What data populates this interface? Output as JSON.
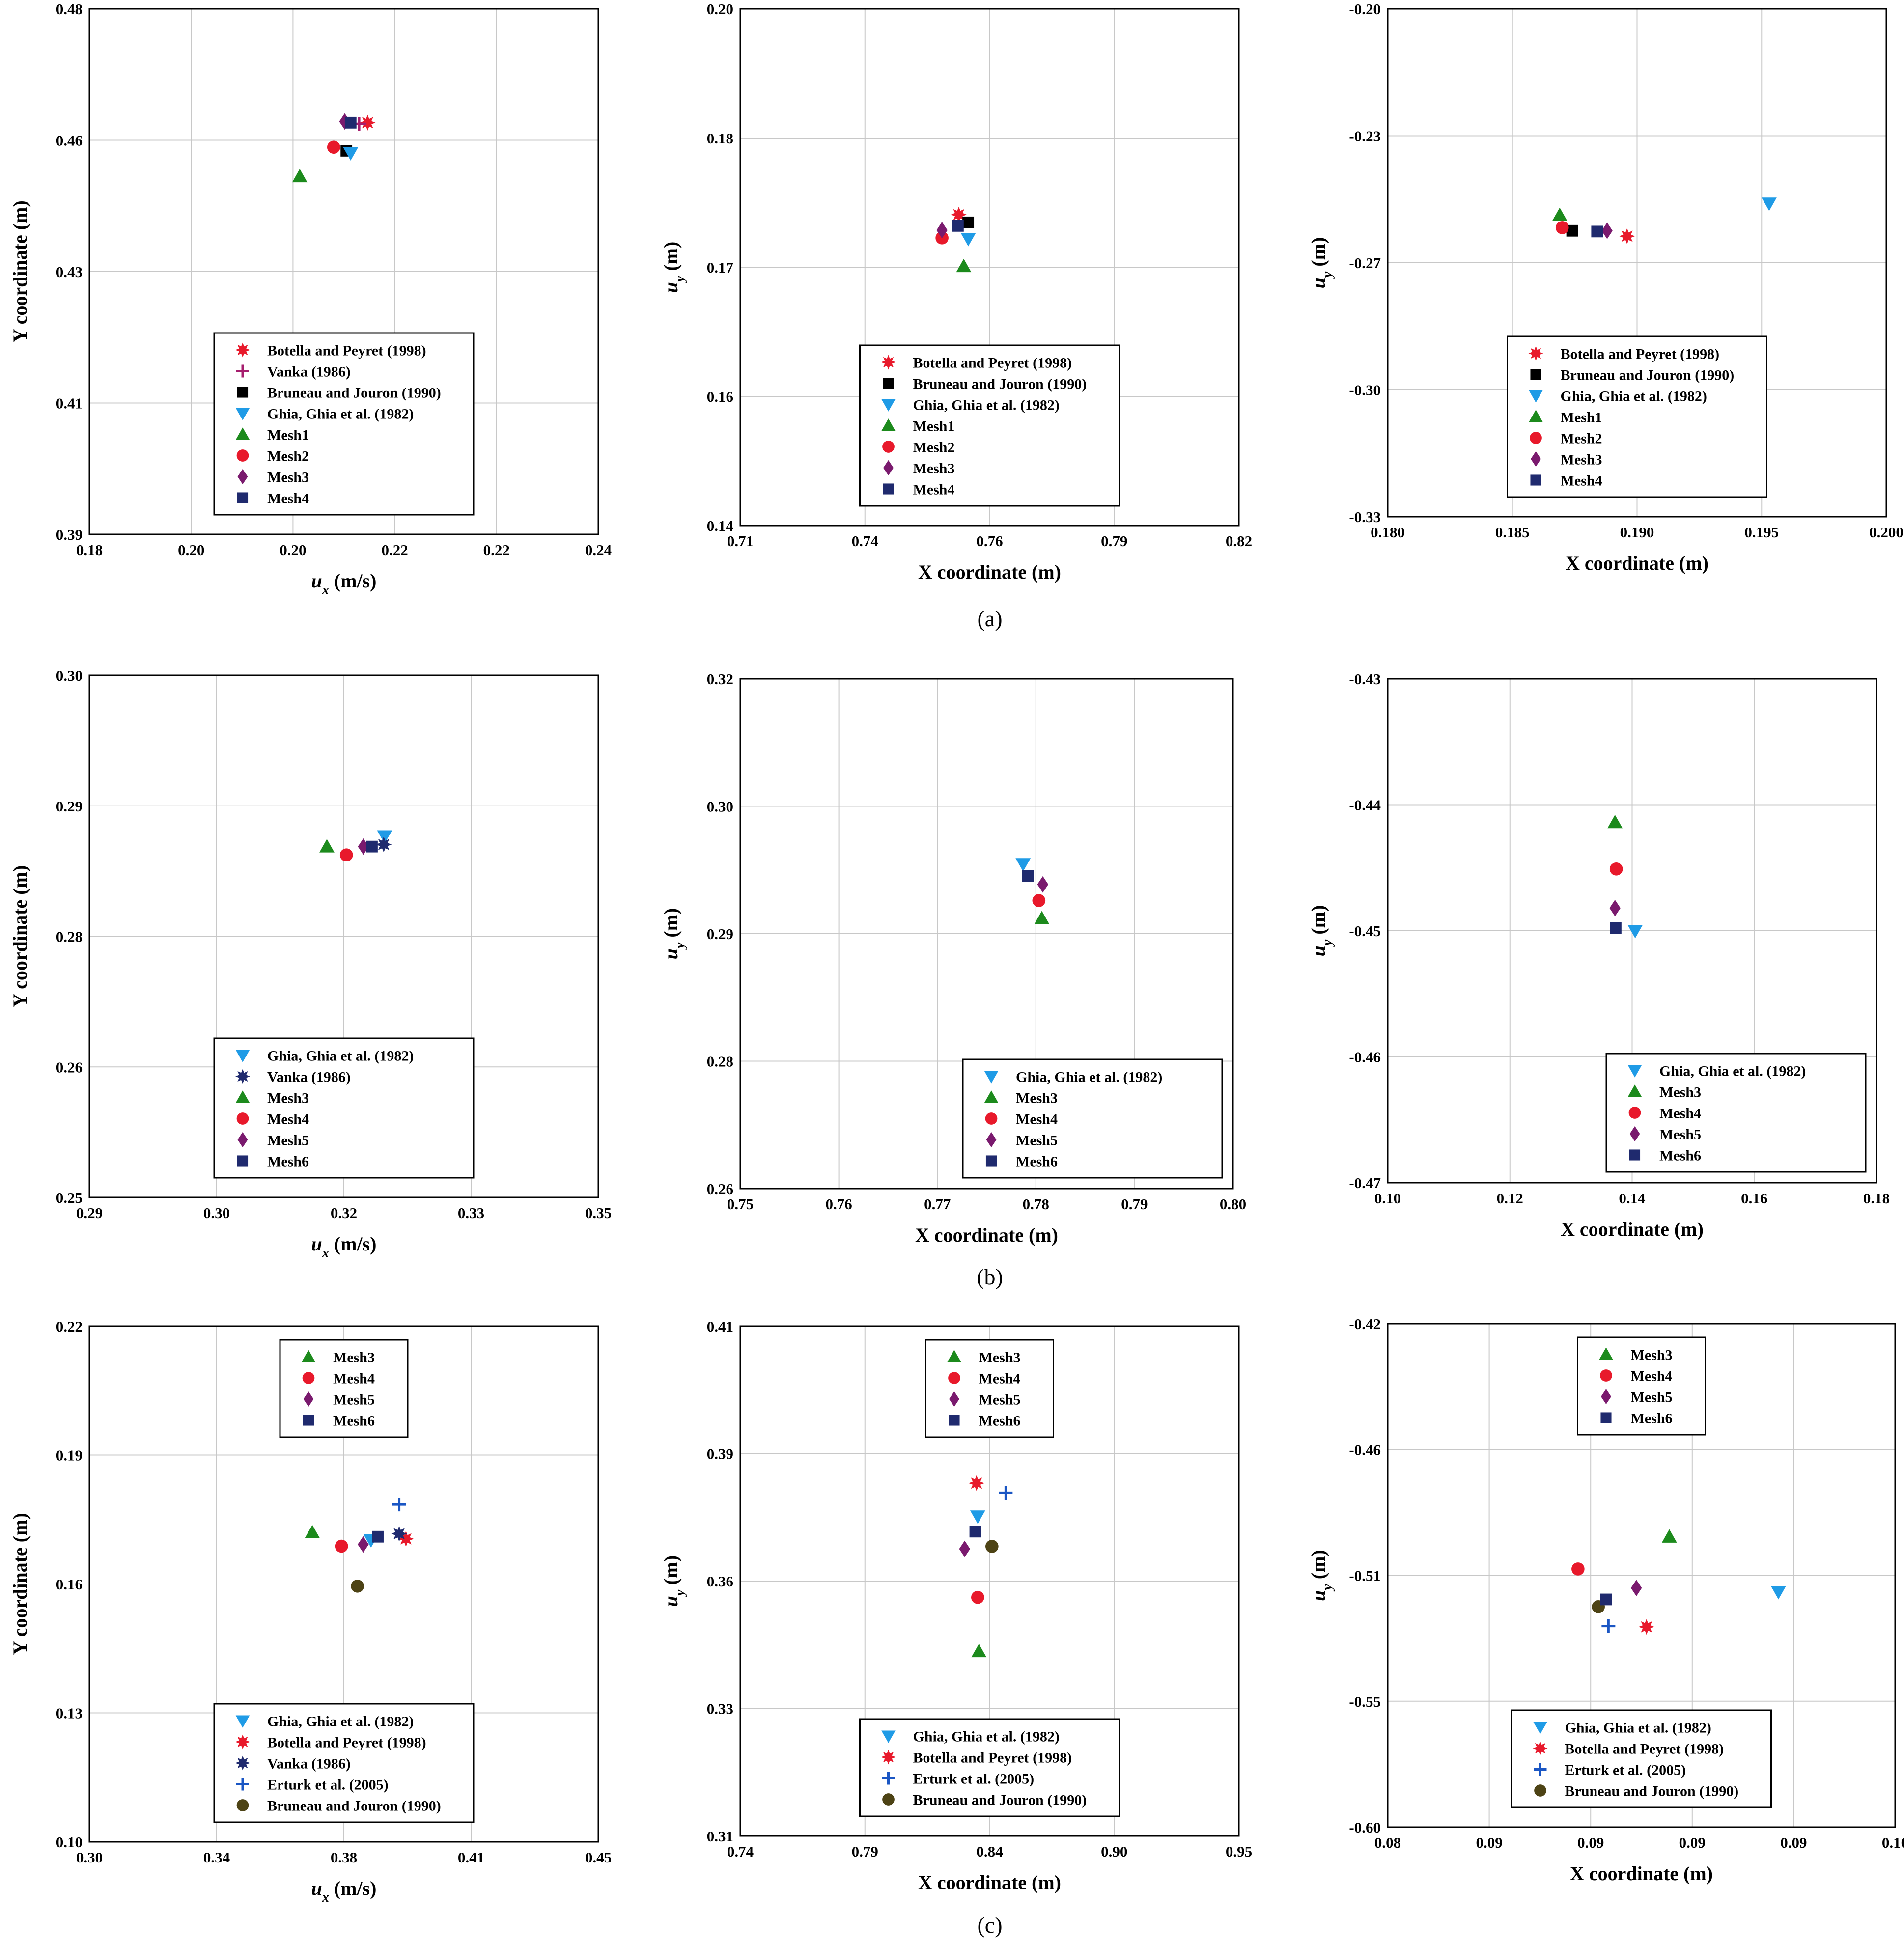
{
  "figure": {
    "panel_labels": [
      "(a)",
      "(b)",
      "(c)"
    ]
  },
  "colors": {
    "Botella": "#e8192b",
    "Vanka_plus": "#a61e6e",
    "Vanka_star": "#1f2a6e",
    "Bruneau": "#000000",
    "Bruneau_olive": "#4d4315",
    "Ghia": "#1f9be6",
    "Erturk": "#1a56c4",
    "Mesh1": "#1c8a1c",
    "Mesh2": "#e8192b",
    "Mesh3": "#1c8a1c",
    "Mesh4": "#e8192b",
    "Mesh5": "#7a1a6e",
    "Mesh6": "#1f2a6e"
  },
  "chart_data": [
    {
      "id": "a1",
      "type": "scatter",
      "xlabel_main": "u",
      "xlabel_sub": "x",
      "xlabel_rest": " (m/s)",
      "ylabel_main": "Y coordinate (m)",
      "xlim": [
        0.18,
        0.24
      ],
      "ylim": [
        0.39,
        0.48
      ],
      "xticks": [
        "0.18",
        "0.20",
        "0.20",
        "0.22",
        "0.22",
        "0.24"
      ],
      "yticks": [
        "0.39",
        "0.41",
        "0.43",
        "0.46",
        "0.48"
      ],
      "legend_pos": "lower-center",
      "series": [
        {
          "name": "Botella and Peyret (1998)",
          "marker": "star",
          "color": "#e8192b",
          "x": 0.2128,
          "y": 0.4605
        },
        {
          "name": "Vanka (1986)",
          "marker": "plus",
          "color": "#a61e6e",
          "x": 0.2118,
          "y": 0.4603
        },
        {
          "name": "Bruneau and Jouron (1990)",
          "marker": "square",
          "color": "#000000",
          "x": 0.2103,
          "y": 0.4557
        },
        {
          "name": "Ghia, Ghia et al. (1982)",
          "marker": "tri-down",
          "color": "#1f9be6",
          "x": 0.2108,
          "y": 0.4553
        },
        {
          "name": "Mesh1",
          "marker": "tri-up",
          "color": "#1c8a1c",
          "x": 0.2048,
          "y": 0.4513
        },
        {
          "name": "Mesh2",
          "marker": "circle",
          "color": "#e8192b",
          "x": 0.2088,
          "y": 0.4563
        },
        {
          "name": "Mesh3",
          "marker": "diamond",
          "color": "#7a1a6e",
          "x": 0.2101,
          "y": 0.4607
        },
        {
          "name": "Mesh4",
          "marker": "square",
          "color": "#1f2a6e",
          "x": 0.2108,
          "y": 0.4605
        }
      ]
    },
    {
      "id": "a2",
      "type": "scatter",
      "xlabel_main": "X coordinate (m)",
      "ylabel_main": "u",
      "ylabel_sub": "y",
      "ylabel_rest": " (m)",
      "xlim": [
        0.71,
        0.82
      ],
      "ylim": [
        0.14,
        0.2
      ],
      "xticks": [
        "0.71",
        "0.74",
        "0.76",
        "0.79",
        "0.82"
      ],
      "yticks": [
        "0.14",
        "0.16",
        "0.17",
        "0.18",
        "0.20"
      ],
      "legend_pos": "lower-center",
      "series": [
        {
          "name": "Botella and Peyret (1998)",
          "marker": "star",
          "color": "#e8192b",
          "x": 0.7582,
          "y": 0.1761
        },
        {
          "name": "Bruneau and Jouron (1990)",
          "marker": "square",
          "color": "#000000",
          "x": 0.7603,
          "y": 0.1752
        },
        {
          "name": "Ghia, Ghia et al. (1982)",
          "marker": "tri-down",
          "color": "#1f9be6",
          "x": 0.7603,
          "y": 0.1733
        },
        {
          "name": "Mesh1",
          "marker": "tri-up",
          "color": "#1c8a1c",
          "x": 0.7593,
          "y": 0.1701
        },
        {
          "name": "Mesh2",
          "marker": "circle",
          "color": "#e8192b",
          "x": 0.7545,
          "y": 0.1734
        },
        {
          "name": "Mesh3",
          "marker": "diamond",
          "color": "#7a1a6e",
          "x": 0.7545,
          "y": 0.1743
        },
        {
          "name": "Mesh4",
          "marker": "square",
          "color": "#1f2a6e",
          "x": 0.758,
          "y": 0.1748
        }
      ]
    },
    {
      "id": "a3",
      "type": "scatter",
      "xlabel_main": "X coordinate (m)",
      "ylabel_main": "u",
      "ylabel_sub": "y",
      "ylabel_rest": " (m)",
      "xlim": [
        0.18,
        0.2
      ],
      "ylim": [
        -0.33,
        -0.2
      ],
      "xticks": [
        "0.180",
        "0.185",
        "0.190",
        "0.195",
        "0.200"
      ],
      "yticks": [
        "-0.33",
        "-0.30",
        "-0.27",
        "-0.23",
        "-0.20"
      ],
      "legend_pos": "lower-center",
      "series": [
        {
          "name": "Botella and Peyret (1998)",
          "marker": "star",
          "color": "#e8192b",
          "x": 0.1896,
          "y": -0.2582
        },
        {
          "name": "Bruneau and Jouron (1990)",
          "marker": "square",
          "color": "#000000",
          "x": 0.1874,
          "y": -0.2568
        },
        {
          "name": "Ghia, Ghia et al. (1982)",
          "marker": "tri-down",
          "color": "#1f9be6",
          "x": 0.1953,
          "y": -0.2498
        },
        {
          "name": "Mesh1",
          "marker": "tri-up",
          "color": "#1c8a1c",
          "x": 0.1869,
          "y": -0.2528
        },
        {
          "name": "Mesh2",
          "marker": "circle",
          "color": "#e8192b",
          "x": 0.187,
          "y": -0.256
        },
        {
          "name": "Mesh3",
          "marker": "diamond",
          "color": "#7a1a6e",
          "x": 0.1888,
          "y": -0.2568
        },
        {
          "name": "Mesh4",
          "marker": "square",
          "color": "#1f2a6e",
          "x": 0.1884,
          "y": -0.257
        }
      ]
    },
    {
      "id": "b1",
      "type": "scatter",
      "xlabel_main": "u",
      "xlabel_sub": "x",
      "xlabel_rest": " (m/s)",
      "ylabel_main": "Y coordinate (m)",
      "xlim": [
        0.29,
        0.35
      ],
      "ylim": [
        0.25,
        0.3
      ],
      "xticks": [
        "0.29",
        "0.30",
        "0.32",
        "0.33",
        "0.35"
      ],
      "yticks": [
        "0.25",
        "0.26",
        "0.28",
        "0.29",
        "0.30"
      ],
      "legend_pos": "lower-center",
      "series": [
        {
          "name": "Ghia, Ghia et al. (1982)",
          "marker": "tri-down",
          "color": "#1f9be6",
          "x": 0.3248,
          "y": 0.2846
        },
        {
          "name": "Vanka (1986)",
          "marker": "star",
          "color": "#1f2a6e",
          "x": 0.3247,
          "y": 0.2838
        },
        {
          "name": "Mesh3",
          "marker": "tri-up",
          "color": "#1c8a1c",
          "x": 0.318,
          "y": 0.2836
        },
        {
          "name": "Mesh4",
          "marker": "circle",
          "color": "#e8192b",
          "x": 0.3203,
          "y": 0.2828
        },
        {
          "name": "Mesh5",
          "marker": "diamond",
          "color": "#7a1a6e",
          "x": 0.3223,
          "y": 0.2836
        },
        {
          "name": "Mesh6",
          "marker": "square",
          "color": "#1f2a6e",
          "x": 0.3233,
          "y": 0.2836
        }
      ]
    },
    {
      "id": "b2",
      "type": "scatter",
      "xlabel_main": "X coordinate (m)",
      "ylabel_main": "u",
      "ylabel_sub": "y",
      "ylabel_rest": " (m)",
      "xlim": [
        0.75,
        0.8
      ],
      "ylim": [
        0.26,
        0.32
      ],
      "xticks": [
        "0.75",
        "0.76",
        "0.77",
        "0.78",
        "0.79",
        "0.80"
      ],
      "yticks": [
        "0.26",
        "0.28",
        "0.29",
        "0.30",
        "0.32"
      ],
      "legend_pos": "lower-right",
      "series": [
        {
          "name": "Ghia, Ghia et al. (1982)",
          "marker": "tri-down",
          "color": "#1f9be6",
          "x": 0.7787,
          "y": 0.2982
        },
        {
          "name": "Mesh3",
          "marker": "tri-up",
          "color": "#1c8a1c",
          "x": 0.7806,
          "y": 0.2918
        },
        {
          "name": "Mesh4",
          "marker": "circle",
          "color": "#e8192b",
          "x": 0.7803,
          "y": 0.2939
        },
        {
          "name": "Mesh5",
          "marker": "diamond",
          "color": "#7a1a6e",
          "x": 0.7807,
          "y": 0.2958
        },
        {
          "name": "Mesh6",
          "marker": "square",
          "color": "#1f2a6e",
          "x": 0.7792,
          "y": 0.2968
        }
      ]
    },
    {
      "id": "b3",
      "type": "scatter",
      "xlabel_main": "X coordinate (m)",
      "ylabel_main": "u",
      "ylabel_sub": "y",
      "ylabel_rest": " (m)",
      "xlim": [
        0.1,
        0.18
      ],
      "ylim": [
        -0.47,
        -0.43
      ],
      "xticks": [
        "0.10",
        "0.12",
        "0.14",
        "0.16",
        "0.18"
      ],
      "yticks": [
        "-0.47",
        "-0.46",
        "-0.45",
        "-0.44",
        "-0.43"
      ],
      "legend_pos": "lower-right",
      "series": [
        {
          "name": "Ghia, Ghia et al. (1982)",
          "marker": "tri-down",
          "color": "#1f9be6",
          "x": 0.1405,
          "y": -0.45
        },
        {
          "name": "Mesh3",
          "marker": "tri-up",
          "color": "#1c8a1c",
          "x": 0.1372,
          "y": -0.4414
        },
        {
          "name": "Mesh4",
          "marker": "circle",
          "color": "#e8192b",
          "x": 0.1374,
          "y": -0.4451
        },
        {
          "name": "Mesh5",
          "marker": "diamond",
          "color": "#7a1a6e",
          "x": 0.1372,
          "y": -0.4482
        },
        {
          "name": "Mesh6",
          "marker": "square",
          "color": "#1f2a6e",
          "x": 0.1373,
          "y": -0.4498
        }
      ]
    },
    {
      "id": "c1",
      "type": "scatter",
      "xlabel_main": "u",
      "xlabel_sub": "x",
      "xlabel_rest": " (m/s)",
      "ylabel_main": "Y coordinate (m)",
      "xlim": [
        0.3,
        0.45
      ],
      "ylim": [
        0.1,
        0.22
      ],
      "xticks": [
        "0.30",
        "0.34",
        "0.38",
        "0.41",
        "0.45"
      ],
      "yticks": [
        "0.10",
        "0.13",
        "0.16",
        "0.19",
        "0.22"
      ],
      "legend_pos": "lower-center",
      "legend2_pos": "top-center",
      "series": [
        {
          "name": "Ghia, Ghia et al. (1982)",
          "marker": "tri-down",
          "color": "#1f9be6",
          "x": 0.383,
          "y": 0.1702
        },
        {
          "name": "Botella and Peyret (1998)",
          "marker": "star",
          "color": "#e8192b",
          "x": 0.3933,
          "y": 0.1705
        },
        {
          "name": "Vanka (1986)",
          "marker": "star",
          "color": "#1f2a6e",
          "x": 0.3913,
          "y": 0.1717
        },
        {
          "name": "Erturk et al. (2005)",
          "marker": "plus",
          "color": "#1a56c4",
          "x": 0.3913,
          "y": 0.1785
        },
        {
          "name": "Bruneau and Jouron (1990)",
          "marker": "circle",
          "color": "#4d4315",
          "x": 0.379,
          "y": 0.1595
        },
        {
          "name": "Mesh3",
          "marker": "tri-up",
          "color": "#1c8a1c",
          "x": 0.3657,
          "y": 0.172,
          "legend": 2
        },
        {
          "name": "Mesh4",
          "marker": "circle",
          "color": "#e8192b",
          "x": 0.3743,
          "y": 0.1688,
          "legend": 2
        },
        {
          "name": "Mesh5",
          "marker": "diamond",
          "color": "#7a1a6e",
          "x": 0.3807,
          "y": 0.1692,
          "legend": 2
        },
        {
          "name": "Mesh6",
          "marker": "square",
          "color": "#1f2a6e",
          "x": 0.385,
          "y": 0.171,
          "legend": 2
        }
      ]
    },
    {
      "id": "c2",
      "type": "scatter",
      "xlabel_main": "X coordinate (m)",
      "ylabel_main": "u",
      "ylabel_sub": "y",
      "ylabel_rest": " (m)",
      "xlim": [
        0.74,
        0.95
      ],
      "ylim": [
        0.31,
        0.41
      ],
      "xticks": [
        "0.74",
        "0.79",
        "0.84",
        "0.90",
        "0.95"
      ],
      "yticks": [
        "0.31",
        "0.33",
        "0.36",
        "0.39",
        "0.41"
      ],
      "legend_pos": "lower-center",
      "legend2_pos": "top-center",
      "series": [
        {
          "name": "Ghia, Ghia et al. (1982)",
          "marker": "tri-down",
          "color": "#1f9be6",
          "x": 0.84,
          "y": 0.3727
        },
        {
          "name": "Botella and Peyret (1998)",
          "marker": "star",
          "color": "#e8192b",
          "x": 0.8395,
          "y": 0.3792
        },
        {
          "name": "Erturk et al. (2005)",
          "marker": "plus",
          "color": "#1a56c4",
          "x": 0.8518,
          "y": 0.3773
        },
        {
          "name": "Bruneau and Jouron (1990)",
          "marker": "circle",
          "color": "#4d4315",
          "x": 0.846,
          "y": 0.3668
        },
        {
          "name": "Mesh3",
          "marker": "tri-up",
          "color": "#1c8a1c",
          "x": 0.8405,
          "y": 0.3462,
          "legend": 2
        },
        {
          "name": "Mesh4",
          "marker": "circle",
          "color": "#e8192b",
          "x": 0.84,
          "y": 0.3568,
          "legend": 2
        },
        {
          "name": "Mesh5",
          "marker": "diamond",
          "color": "#7a1a6e",
          "x": 0.8345,
          "y": 0.3663,
          "legend": 2
        },
        {
          "name": "Mesh6",
          "marker": "square",
          "color": "#1f2a6e",
          "x": 0.839,
          "y": 0.3697,
          "legend": 2
        }
      ]
    },
    {
      "id": "c3",
      "type": "scatter",
      "xlabel_main": "X coordinate (m)",
      "ylabel_main": "u",
      "ylabel_sub": "y",
      "ylabel_rest": " (m)",
      "xlim": [
        0.08,
        0.1
      ],
      "ylim": [
        -0.6,
        -0.42
      ],
      "xticks": [
        "0.08",
        "0.09",
        "0.09",
        "0.09",
        "0.09",
        "0.10"
      ],
      "yticks": [
        "-0.60",
        "-0.55",
        "-0.51",
        "-0.46",
        "-0.42"
      ],
      "legend_pos": "lower-center",
      "legend2_pos": "top-center",
      "series": [
        {
          "name": "Ghia, Ghia et al. (1982)",
          "marker": "tri-down",
          "color": "#1f9be6",
          "x": 0.0954,
          "y": -0.5159
        },
        {
          "name": "Botella and Peyret (1998)",
          "marker": "star",
          "color": "#e8192b",
          "x": 0.0902,
          "y": -0.5284
        },
        {
          "name": "Erturk et al. (2005)",
          "marker": "plus",
          "color": "#1a56c4",
          "x": 0.0887,
          "y": -0.5281
        },
        {
          "name": "Bruneau and Jouron (1990)",
          "marker": "circle",
          "color": "#4d4315",
          "x": 0.0883,
          "y": -0.5212
        },
        {
          "name": "Mesh3",
          "marker": "tri-up",
          "color": "#1c8a1c",
          "x": 0.0911,
          "y": -0.4962,
          "legend": 2
        },
        {
          "name": "Mesh4",
          "marker": "circle",
          "color": "#e8192b",
          "x": 0.0875,
          "y": -0.5077,
          "legend": 2
        },
        {
          "name": "Mesh5",
          "marker": "diamond",
          "color": "#7a1a6e",
          "x": 0.0898,
          "y": -0.5145,
          "legend": 2
        },
        {
          "name": "Mesh6",
          "marker": "square",
          "color": "#1f2a6e",
          "x": 0.0886,
          "y": -0.5186,
          "legend": 2
        }
      ]
    }
  ]
}
